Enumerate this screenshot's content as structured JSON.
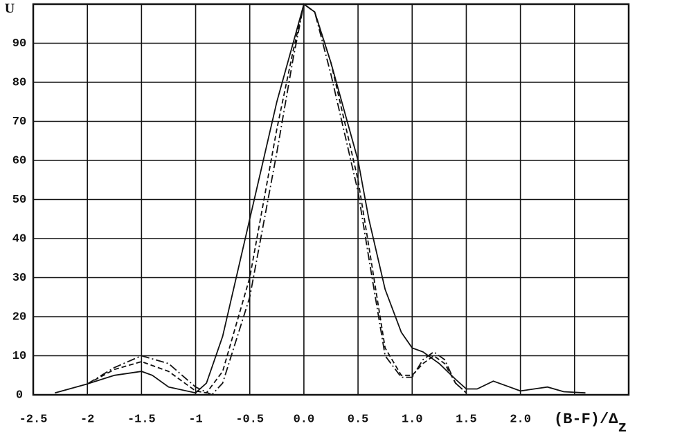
{
  "chart_data": {
    "type": "line",
    "y_label": "U",
    "x_label": "(B-F)/Δ",
    "x_label_sub": "z",
    "xlim": [
      -2.5,
      3.0
    ],
    "ylim": [
      0,
      100
    ],
    "xticks": [
      -2.5,
      -2.0,
      -1.5,
      -1.0,
      -0.5,
      {
        "value": 0,
        "label": "0.0"
      },
      0.5,
      {
        "value": 1,
        "label": "1.0"
      },
      1.5,
      {
        "value": 2,
        "label": "2.0"
      }
    ],
    "xgrid": [
      -2.0,
      -1.5,
      -1.0,
      -0.5,
      0.0,
      0.5,
      1.0,
      1.5,
      2.0,
      2.5
    ],
    "yticks": [
      0,
      10,
      20,
      30,
      40,
      50,
      60,
      70,
      80,
      90
    ],
    "ygrid": [
      10,
      20,
      30,
      40,
      50,
      60,
      70,
      80,
      90
    ],
    "grid": true,
    "series": [
      {
        "color": "#111111",
        "dash": "solid",
        "x": [
          -2.3,
          -2.0,
          -1.75,
          -1.5,
          -1.4,
          -1.25,
          -1.0,
          -0.9,
          -0.75,
          -0.5,
          -0.25,
          -0.1,
          0.0,
          0.1,
          0.25,
          0.5,
          0.6,
          0.75,
          0.9,
          1.0,
          1.1,
          1.25,
          1.4,
          1.5,
          1.6,
          1.75,
          1.9,
          2.0,
          2.25,
          2.4,
          2.6
        ],
        "values": [
          0.5,
          2.8,
          5,
          6,
          5,
          2,
          0.5,
          3,
          15,
          45,
          75,
          90,
          100,
          98,
          85,
          60,
          45,
          27,
          16,
          12,
          11,
          8,
          4,
          1.5,
          1.5,
          3.5,
          2,
          1,
          2,
          0.8,
          0.5
        ]
      },
      {
        "color": "#111111",
        "dash": "dashed",
        "x": [
          -2.0,
          -1.75,
          -1.5,
          -1.25,
          -1.0,
          -0.9,
          -0.75,
          -0.5,
          -0.25,
          -0.1,
          0.0,
          0.1,
          0.25,
          0.5,
          0.6,
          0.75,
          0.9,
          1.0,
          1.1,
          1.2,
          1.3,
          1.4,
          1.5
        ],
        "values": [
          2.8,
          6.5,
          8.5,
          6,
          1,
          0.5,
          6,
          30,
          68,
          88,
          100,
          98,
          85,
          55,
          38,
          12,
          5,
          5,
          8,
          10,
          8,
          3,
          0.5
        ]
      },
      {
        "color": "#111111",
        "dash": "dashdot",
        "x": [
          -2.0,
          -1.75,
          -1.5,
          -1.25,
          -1.0,
          -0.85,
          -0.75,
          -0.5,
          -0.25,
          -0.1,
          0.0,
          0.1,
          0.25,
          0.5,
          0.6,
          0.75,
          0.9,
          1.0,
          1.1,
          1.2,
          1.3,
          1.4,
          1.5
        ],
        "values": [
          2.8,
          7,
          10,
          8,
          2,
          0,
          3,
          25,
          62,
          86,
          100,
          98,
          82,
          52,
          35,
          10,
          4.5,
          4.5,
          9,
          11,
          9,
          3,
          0.5
        ]
      }
    ]
  }
}
